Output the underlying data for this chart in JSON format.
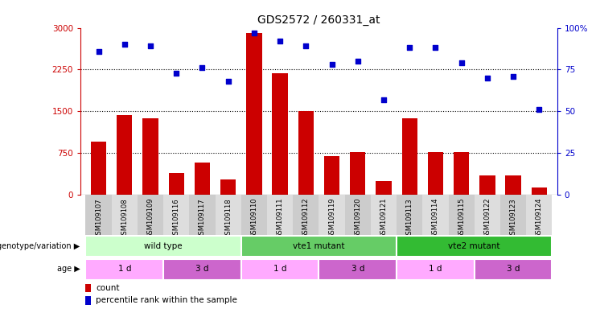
{
  "title": "GDS2572 / 260331_at",
  "samples": [
    "GSM109107",
    "GSM109108",
    "GSM109109",
    "GSM109116",
    "GSM109117",
    "GSM109118",
    "GSM109110",
    "GSM109111",
    "GSM109112",
    "GSM109119",
    "GSM109120",
    "GSM109121",
    "GSM109113",
    "GSM109114",
    "GSM109115",
    "GSM109122",
    "GSM109123",
    "GSM109124"
  ],
  "counts": [
    950,
    1430,
    1380,
    390,
    580,
    280,
    2900,
    2180,
    1510,
    700,
    760,
    240,
    1380,
    760,
    760,
    340,
    350,
    130
  ],
  "percentiles": [
    86,
    90,
    89,
    73,
    76,
    68,
    97,
    92,
    89,
    78,
    80,
    57,
    88,
    88,
    79,
    70,
    71,
    51
  ],
  "ylim_left": [
    0,
    3000
  ],
  "ylim_right": [
    0,
    100
  ],
  "yticks_left": [
    0,
    750,
    1500,
    2250,
    3000
  ],
  "yticks_right": [
    0,
    25,
    50,
    75,
    100
  ],
  "bar_color": "#cc0000",
  "dot_color": "#0000cc",
  "genotype_groups": [
    {
      "label": "wild type",
      "start": 0,
      "end": 6,
      "color": "#ccffcc"
    },
    {
      "label": "vte1 mutant",
      "start": 6,
      "end": 12,
      "color": "#66cc66"
    },
    {
      "label": "vte2 mutant",
      "start": 12,
      "end": 18,
      "color": "#33bb33"
    }
  ],
  "age_groups": [
    {
      "label": "1 d",
      "start": 0,
      "end": 3,
      "color": "#ffaaff"
    },
    {
      "label": "3 d",
      "start": 3,
      "end": 6,
      "color": "#cc66cc"
    },
    {
      "label": "1 d",
      "start": 6,
      "end": 9,
      "color": "#ffaaff"
    },
    {
      "label": "3 d",
      "start": 9,
      "end": 12,
      "color": "#cc66cc"
    },
    {
      "label": "1 d",
      "start": 12,
      "end": 15,
      "color": "#ffaaff"
    },
    {
      "label": "3 d",
      "start": 15,
      "end": 18,
      "color": "#cc66cc"
    }
  ],
  "bg_color": "#ffffff",
  "hgrid_color": "black"
}
